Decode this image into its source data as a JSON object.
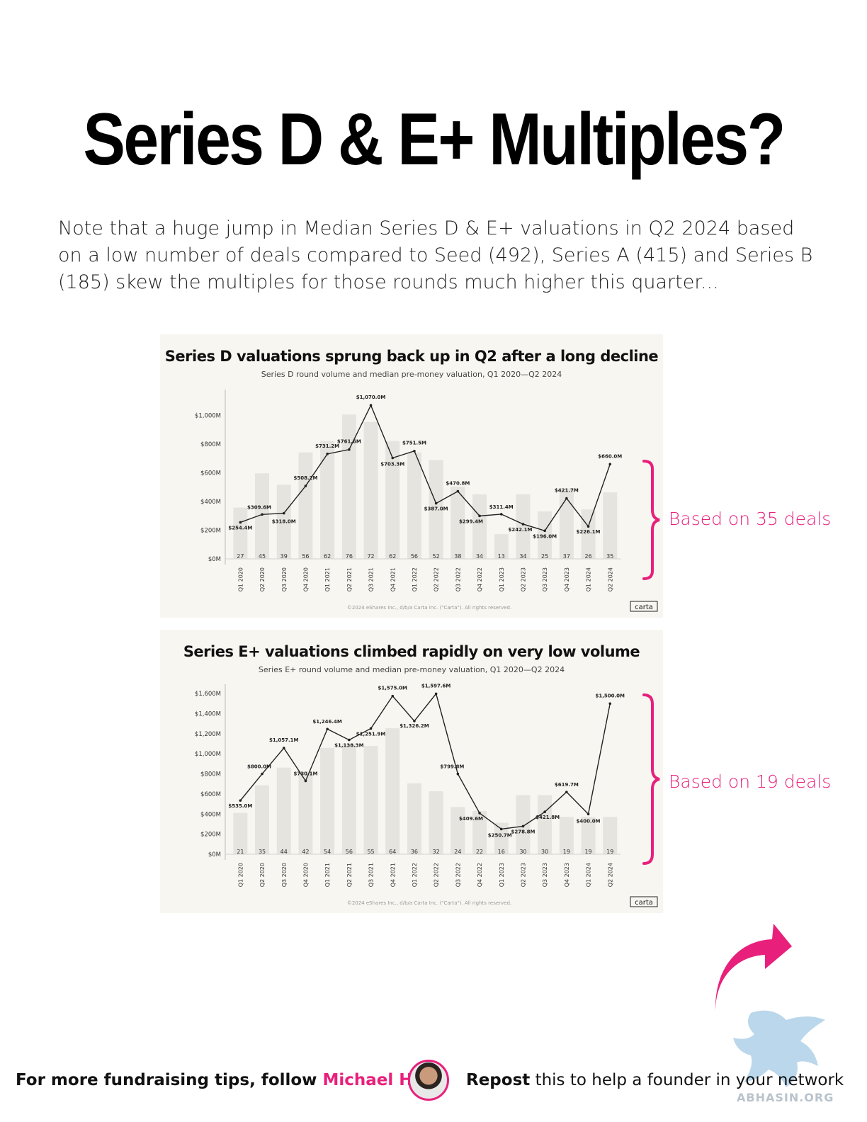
{
  "headline": "Series D & E+ Multiples?",
  "intro": "Note that a huge jump in Median Series D & E+ valuations in Q2 2024 based on a low number of deals compared to Seed (492), Series A (415) and Series B (185) skew the multiples for those rounds much higher this quarter...",
  "callouts": [
    "Based on 35 deals",
    "Based on 19 deals"
  ],
  "footer": {
    "follow_prefix": "For more fundraising tips, follow ",
    "follow_name": "Michael Ho",
    "repost_bold": "Repost",
    "repost_rest": " this to help a founder in your network"
  },
  "watermark_text": "ABHASIN.ORG",
  "colors": {
    "accent": "#e8207c",
    "bar": "#e6e4df",
    "card_bg": "#f8f6f1",
    "line": "#222222"
  },
  "chart_data": [
    {
      "type": "bar",
      "title": "Series D valuations sprung back up in Q2 after a long decline",
      "subtitle": "Series D round volume and median pre-money valuation, Q1 2020—Q2 2024",
      "categories": [
        "Q1 2020",
        "Q2 2020",
        "Q3 2020",
        "Q4 2020",
        "Q1 2021",
        "Q2 2021",
        "Q3 2021",
        "Q4 2021",
        "Q1 2022",
        "Q2 2022",
        "Q3 2022",
        "Q4 2022",
        "Q1 2023",
        "Q2 2023",
        "Q3 2023",
        "Q4 2023",
        "Q1 2024",
        "Q2 2024"
      ],
      "series": [
        {
          "kind": "bar",
          "values": [
            27,
            45,
            39,
            56,
            62,
            76,
            72,
            62,
            56,
            52,
            38,
            34,
            13,
            34,
            25,
            37,
            26,
            35
          ]
        },
        {
          "kind": "line",
          "values": [
            254.4,
            309.6,
            318.0,
            508.2,
            731.2,
            761.6,
            1070.0,
            703.3,
            751.5,
            387.0,
            470.8,
            299.4,
            311.4,
            242.1,
            196.0,
            421.7,
            226.1,
            660.0
          ],
          "labels": [
            "$254.4M",
            "$309.6M",
            "$318.0M",
            "$508.2M",
            "$731.2M",
            "$761.6M",
            "$1,070.0M",
            "$703.3M",
            "$751.5M",
            "$387.0M",
            "$470.8M",
            "$299.4M",
            "$311.4M",
            "$242.1M",
            "$196.0M",
            "$421.7M",
            "$226.1M",
            "$660.0M"
          ]
        }
      ],
      "yticks": [
        "$0M",
        "$200M",
        "$400M",
        "$600M",
        "$800M",
        "$1,000M"
      ],
      "ytick_values": [
        0,
        200,
        400,
        600,
        800,
        1000
      ],
      "ylim": [
        0,
        1150
      ],
      "bar_max": 82,
      "footnote": "©2024 eShares Inc., d/b/a Carta Inc. (\"Carta\"). All rights reserved.",
      "brand": "carta"
    },
    {
      "type": "bar",
      "title": "Series E+ valuations climbed rapidly on very low volume",
      "subtitle": "Series E+ round volume and median pre-money valuation, Q1 2020—Q2 2024",
      "categories": [
        "Q1 2020",
        "Q2 2020",
        "Q3 2020",
        "Q4 2020",
        "Q1 2021",
        "Q2 2021",
        "Q3 2021",
        "Q4 2021",
        "Q1 2022",
        "Q2 2022",
        "Q3 2022",
        "Q4 2022",
        "Q1 2023",
        "Q2 2023",
        "Q3 2023",
        "Q4 2023",
        "Q1 2024",
        "Q2 2024"
      ],
      "series": [
        {
          "kind": "bar",
          "values": [
            21,
            35,
            44,
            42,
            54,
            56,
            55,
            64,
            36,
            32,
            24,
            22,
            16,
            30,
            30,
            19,
            19,
            19
          ]
        },
        {
          "kind": "line",
          "values": [
            535.0,
            800.0,
            1057.1,
            730.1,
            1246.4,
            1138.3,
            1251.9,
            1575.0,
            1326.2,
            1597.6,
            799.8,
            409.6,
            250.7,
            278.8,
            421.8,
            619.7,
            400.0,
            1500.0
          ],
          "labels": [
            "$535.0M",
            "$800.0M",
            "$1,057.1M",
            "$730.1M",
            "$1,246.4M",
            "$1,138.3M",
            "$1,251.9M",
            "$1,575.0M",
            "$1,326.2M",
            "$1,597.6M",
            "$799.8M",
            "$409.6M",
            "$250.7M",
            "$278.8M",
            "$421.8M",
            "$619.7M",
            "$400.0M",
            "$1,500.0M"
          ]
        }
      ],
      "yticks": [
        "$0M",
        "$200M",
        "$400M",
        "$600M",
        "$800M",
        "$1,000M",
        "$1,200M",
        "$1,400M",
        "$1,600M"
      ],
      "ytick_values": [
        0,
        200,
        400,
        600,
        800,
        1000,
        1200,
        1400,
        1600
      ],
      "ylim": [
        0,
        1650
      ],
      "bar_max": 68,
      "footnote": "©2024 eShares Inc., d/b/a Carta Inc. (\"Carta\"). All rights reserved.",
      "brand": "carta"
    }
  ]
}
